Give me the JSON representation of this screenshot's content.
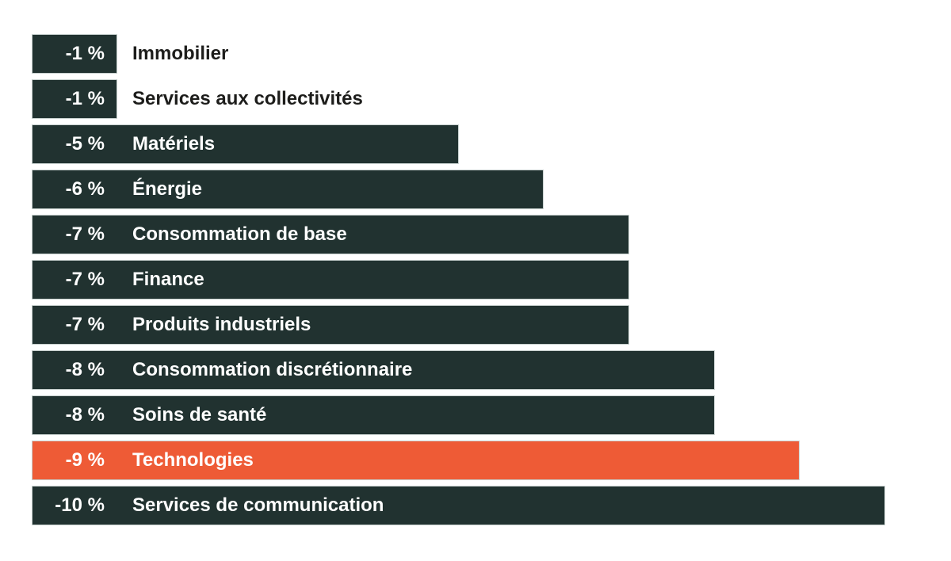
{
  "chart_data": {
    "type": "bar",
    "orientation": "horizontal",
    "title": "",
    "xlabel": "",
    "ylabel": "",
    "grid": false,
    "legend": null,
    "axis_ticks_visible": false,
    "xlim": [
      0,
      -10
    ],
    "categories": [
      "Immobilier",
      "Services aux collectivités",
      "Matériels",
      "Énergie",
      "Consommation de base",
      "Finance",
      "Produits industriels",
      "Consommation discrétionnaire",
      "Soins de santé",
      "Technologies",
      "Services de communication"
    ],
    "values": [
      -1,
      -1,
      -5,
      -6,
      -7,
      -7,
      -7,
      -8,
      -8,
      -9,
      -10
    ],
    "value_labels": [
      "-1 %",
      "-1 %",
      "-5 %",
      "-6 %",
      "-7 %",
      "-7 %",
      "-7 %",
      "-8 %",
      "-8 %",
      "-9 %",
      "-10 %"
    ],
    "highlight_index": 9,
    "highlighted_category": "Technologies",
    "colors": {
      "bar": "#213230",
      "highlight": "#ee5b36",
      "label_inside": "#ffffff",
      "label_outside": "#1d1d1b",
      "background": "#ffffff"
    }
  }
}
